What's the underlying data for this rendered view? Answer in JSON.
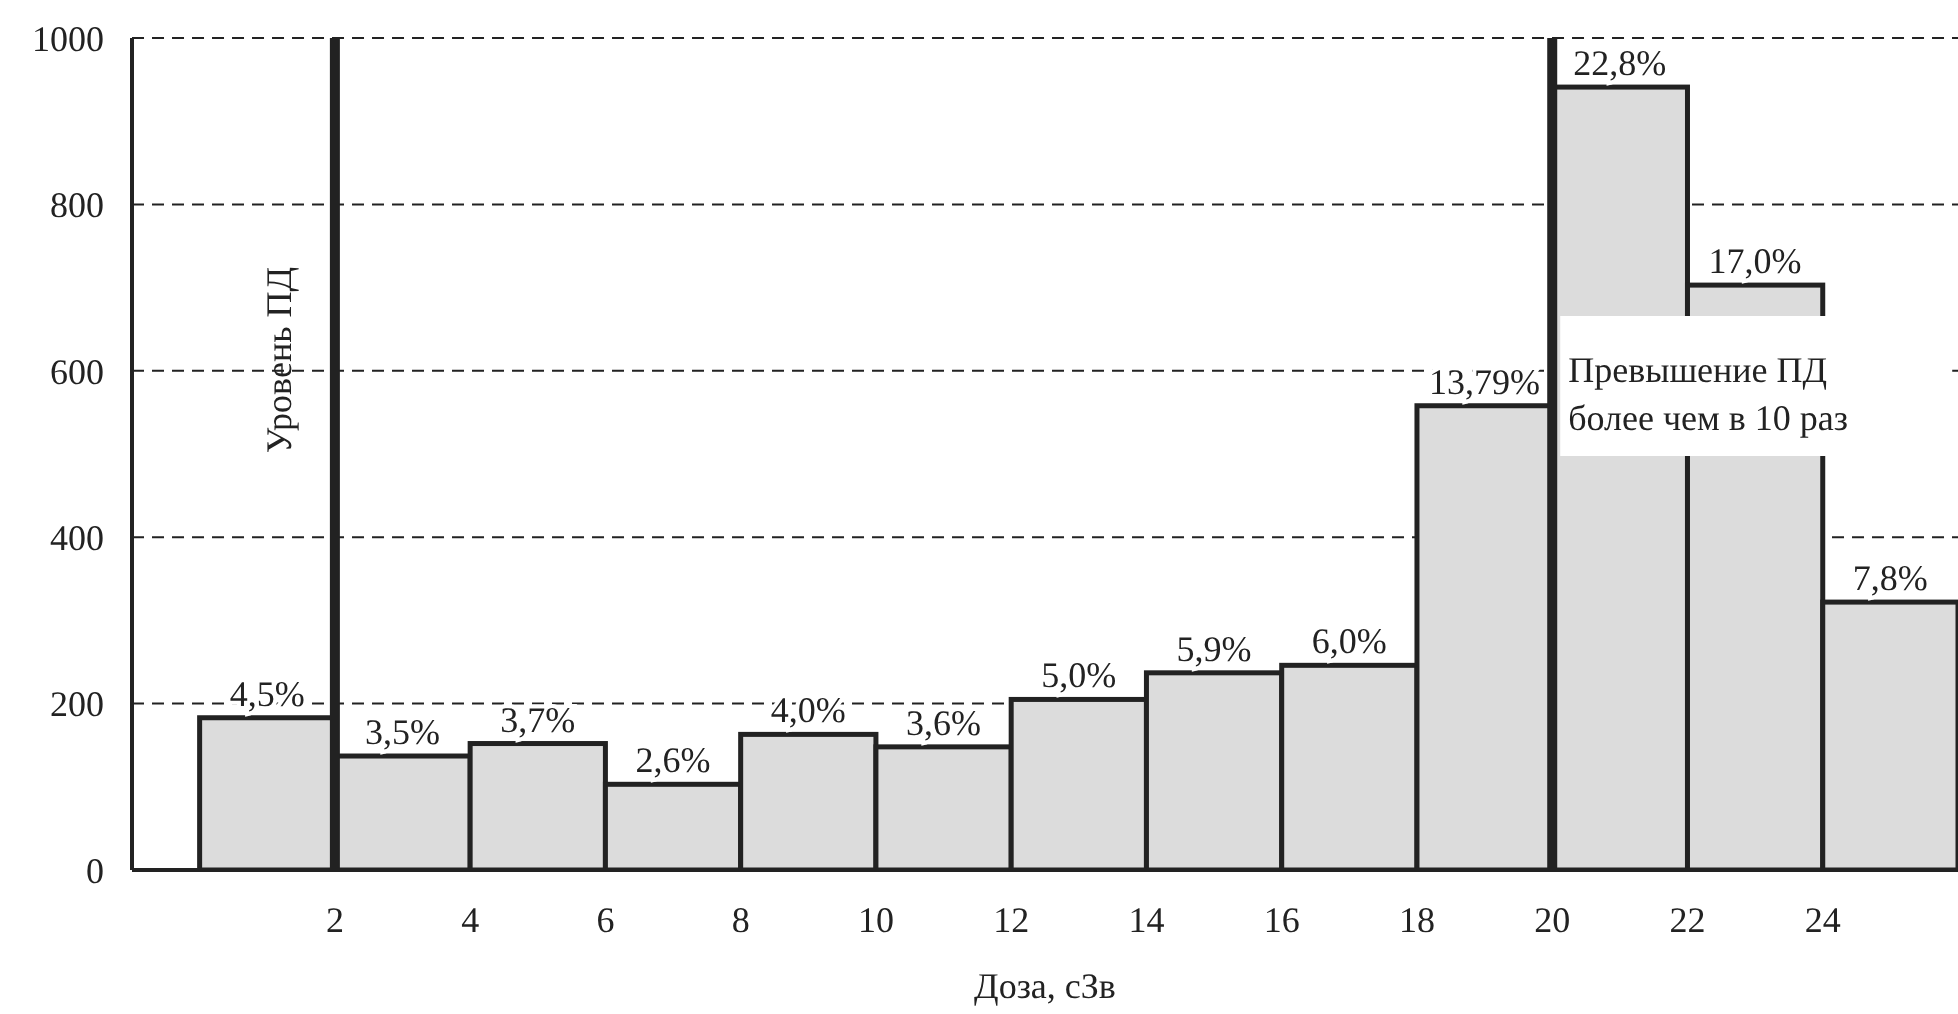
{
  "chart_data": {
    "type": "histogram",
    "xlabel": "Доза, сЗв",
    "bins": [
      0,
      2,
      4,
      6,
      8,
      10,
      12,
      14,
      16,
      18,
      20,
      22,
      24,
      26
    ],
    "values": [
      183,
      137,
      152,
      103,
      163,
      148,
      205,
      237,
      246,
      558,
      941,
      703,
      322
    ],
    "annotations": [
      {
        "text": "4,5%",
        "x": 1,
        "y": 183
      },
      {
        "text": "3,5%",
        "x": 3,
        "y": 137
      },
      {
        "text": "3,7%",
        "x": 5,
        "y": 152
      },
      {
        "text": "2,6%",
        "x": 7,
        "y": 103
      },
      {
        "text": "4,0%",
        "x": 9,
        "y": 163
      },
      {
        "text": "3,6%",
        "x": 11,
        "y": 148
      },
      {
        "text": "5,0%",
        "x": 13,
        "y": 205
      },
      {
        "text": "5,9%",
        "x": 15,
        "y": 237
      },
      {
        "text": "6,0%",
        "x": 17,
        "y": 246
      },
      {
        "text": "13,79%",
        "x": 19,
        "y": 558
      },
      {
        "text": "22,8%",
        "x": 21,
        "y": 941
      },
      {
        "text": "17,0%",
        "x": 23,
        "y": 703
      },
      {
        "text": "7,8%",
        "x": 25,
        "y": 322
      }
    ],
    "color": "#dcdcdc",
    "xlim": [
      -1,
      26
    ],
    "xticks": [
      2,
      4,
      6,
      8,
      10,
      12,
      14,
      16,
      18,
      20,
      22,
      24
    ],
    "ylim": [
      0,
      1000
    ],
    "yticks": [
      0,
      200,
      400,
      600,
      800,
      1000
    ],
    "grid": "y",
    "line_style": "dashed",
    "ref_lines": [
      {
        "axis": "x",
        "value": 2,
        "label": "Уровень ПД",
        "color": "#222222"
      },
      {
        "axis": "x",
        "value": 20,
        "label": "Превышение ПД\nболее чем в 10 раз",
        "color": "#222222"
      }
    ]
  }
}
